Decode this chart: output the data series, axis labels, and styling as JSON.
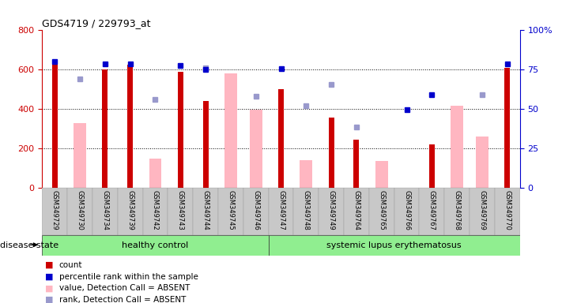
{
  "title": "GDS4719 / 229793_at",
  "samples": [
    "GSM349729",
    "GSM349730",
    "GSM349734",
    "GSM349739",
    "GSM349742",
    "GSM349743",
    "GSM349744",
    "GSM349745",
    "GSM349746",
    "GSM349747",
    "GSM349748",
    "GSM349749",
    "GSM349764",
    "GSM349765",
    "GSM349766",
    "GSM349767",
    "GSM349768",
    "GSM349769",
    "GSM349770"
  ],
  "count_values": [
    650,
    null,
    600,
    625,
    null,
    590,
    440,
    null,
    null,
    500,
    null,
    355,
    245,
    null,
    null,
    220,
    null,
    null,
    610
  ],
  "count_color": "#CC0000",
  "absent_value_bars": [
    null,
    330,
    null,
    null,
    150,
    null,
    null,
    580,
    395,
    null,
    140,
    null,
    null,
    135,
    null,
    null,
    415,
    260,
    null
  ],
  "absent_value_color": "#FFB6C1",
  "percentile_rank_dots": [
    640,
    null,
    630,
    630,
    null,
    620,
    600,
    null,
    null,
    605,
    null,
    null,
    null,
    null,
    395,
    475,
    null,
    null,
    630
  ],
  "percentile_rank_color": "#0000CC",
  "absent_rank_dots": [
    null,
    555,
    null,
    null,
    448,
    null,
    610,
    null,
    465,
    null,
    415,
    525,
    310,
    null,
    null,
    null,
    null,
    475,
    null
  ],
  "absent_rank_color": "#9999CC",
  "ylim": [
    0,
    800
  ],
  "yticks_left": [
    0,
    200,
    400,
    600,
    800
  ],
  "yticks_right_vals": [
    0,
    25,
    50,
    75,
    100
  ],
  "yticks_right_labels": [
    "0",
    "25",
    "50",
    "75",
    "100%"
  ],
  "healthy_control_count": 9,
  "sle_count": 10,
  "healthy_label": "healthy control",
  "sle_label": "systemic lupus erythematosus",
  "disease_state_label": "disease state",
  "bg_color": "#ffffff",
  "legend_items": [
    "count",
    "percentile rank within the sample",
    "value, Detection Call = ABSENT",
    "rank, Detection Call = ABSENT"
  ],
  "legend_colors": [
    "#CC0000",
    "#0000CC",
    "#FFB6C1",
    "#9999CC"
  ]
}
